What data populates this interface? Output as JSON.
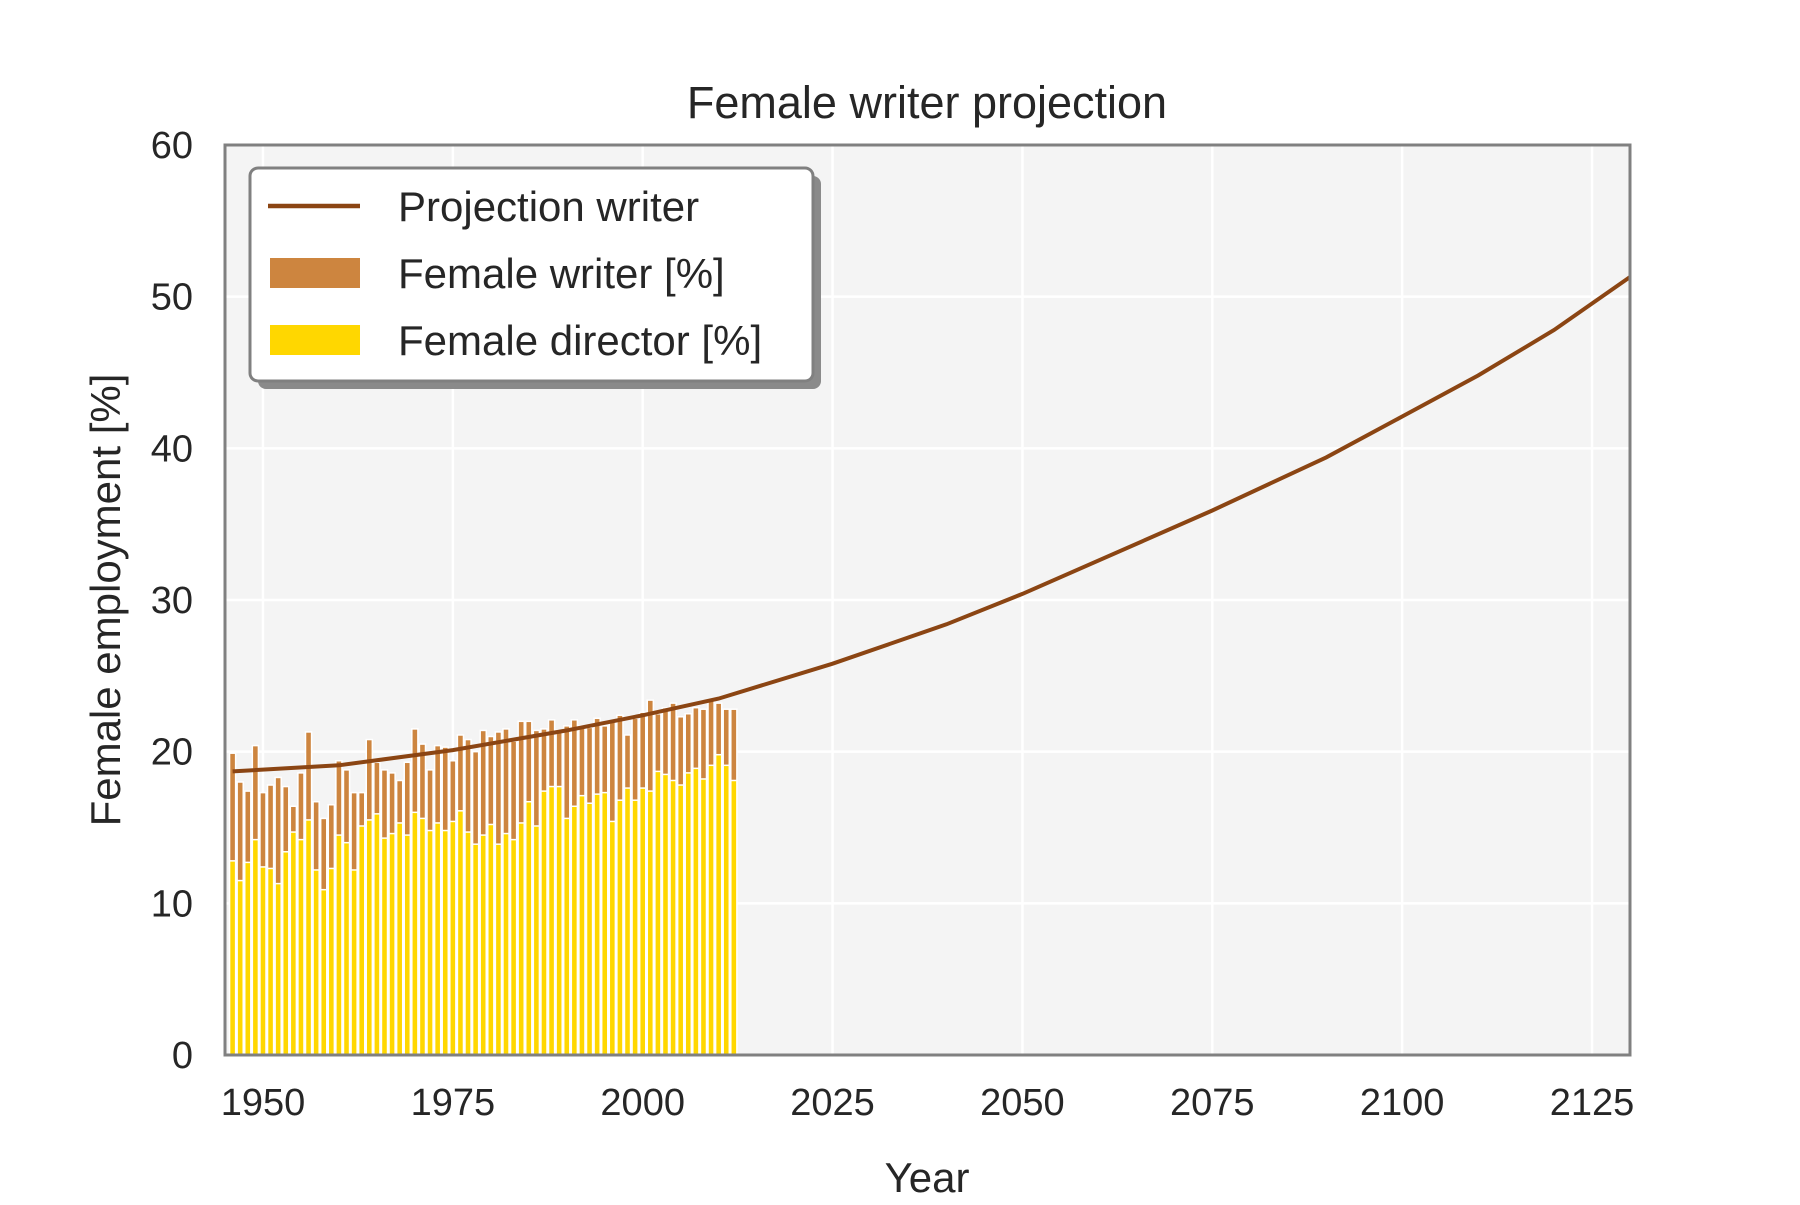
{
  "chart_data": {
    "type": "bar",
    "title": "Female writer projection",
    "xlabel": "Year",
    "ylabel": "Female employment [%]",
    "xlim": [
      1945,
      2130
    ],
    "ylim": [
      0,
      60
    ],
    "xticks": [
      1950,
      1975,
      2000,
      2025,
      2050,
      2075,
      2100,
      2125
    ],
    "yticks": [
      0,
      10,
      20,
      30,
      40,
      50,
      60
    ],
    "grid": true,
    "legend_position": "upper-left",
    "colors": {
      "projection": "#8B4513",
      "writer": "#CD853F",
      "director": "#FFD700",
      "background": "#F4F4F4",
      "frame": "#808080",
      "grid": "#FFFFFF"
    },
    "legend": [
      {
        "label": "Projection writer",
        "kind": "line",
        "color": "#8B4513"
      },
      {
        "label": "Female writer [%]",
        "kind": "patch",
        "color": "#CD853F"
      },
      {
        "label": "Female director [%]",
        "kind": "patch",
        "color": "#FFD700"
      }
    ],
    "projection": {
      "name": "Projection writer",
      "x": [
        1946,
        1960,
        1975,
        1990,
        2000,
        2010,
        2025,
        2040,
        2050,
        2060,
        2075,
        2090,
        2100,
        2110,
        2120,
        2130
      ],
      "y": [
        18.7,
        19.1,
        20.1,
        21.4,
        22.4,
        23.5,
        25.8,
        28.4,
        30.4,
        32.6,
        35.9,
        39.4,
        42.1,
        44.8,
        47.8,
        51.3
      ]
    },
    "years": [
      1946,
      1947,
      1948,
      1949,
      1950,
      1951,
      1952,
      1953,
      1954,
      1955,
      1956,
      1957,
      1958,
      1959,
      1960,
      1961,
      1962,
      1963,
      1964,
      1965,
      1966,
      1967,
      1968,
      1969,
      1970,
      1971,
      1972,
      1973,
      1974,
      1975,
      1976,
      1977,
      1978,
      1979,
      1980,
      1981,
      1982,
      1983,
      1984,
      1985,
      1986,
      1987,
      1988,
      1989,
      1990,
      1991,
      1992,
      1993,
      1994,
      1995,
      1996,
      1997,
      1998,
      1999,
      2000,
      2001,
      2002,
      2003,
      2004,
      2005,
      2006,
      2007,
      2008,
      2009,
      2010,
      2011,
      2012
    ],
    "series": [
      {
        "name": "Female writer [%]",
        "values": [
          19.9,
          18.0,
          17.4,
          20.4,
          17.3,
          17.8,
          18.3,
          17.7,
          16.4,
          18.6,
          21.3,
          16.7,
          15.6,
          16.5,
          19.4,
          18.8,
          17.3,
          17.3,
          20.8,
          19.3,
          18.8,
          18.6,
          18.1,
          19.3,
          21.5,
          20.5,
          18.8,
          20.4,
          20.3,
          19.4,
          21.1,
          20.8,
          20.0,
          21.4,
          21.0,
          21.3,
          21.5,
          20.7,
          22.0,
          22.0,
          21.4,
          21.5,
          22.1,
          21.4,
          21.7,
          22.1,
          21.7,
          21.6,
          22.2,
          21.7,
          22.0,
          22.4,
          21.1,
          22.2,
          22.6,
          23.4,
          22.5,
          22.9,
          23.2,
          22.3,
          22.5,
          22.9,
          22.8,
          23.4,
          23.2,
          22.8,
          22.8
        ]
      },
      {
        "name": "Female director [%]",
        "values": [
          12.8,
          11.5,
          12.7,
          14.2,
          12.4,
          12.3,
          11.3,
          13.4,
          14.7,
          14.2,
          15.5,
          12.2,
          10.9,
          12.3,
          14.5,
          14.0,
          12.2,
          15.1,
          15.5,
          15.9,
          14.3,
          14.6,
          15.3,
          14.5,
          16.0,
          15.6,
          14.8,
          15.3,
          14.8,
          15.4,
          16.1,
          14.7,
          13.9,
          14.5,
          15.2,
          13.9,
          14.6,
          14.2,
          15.3,
          16.7,
          15.1,
          17.4,
          17.7,
          17.7,
          15.6,
          16.4,
          17.1,
          16.6,
          17.2,
          17.3,
          15.4,
          16.8,
          17.6,
          16.8,
          17.6,
          17.4,
          18.7,
          18.5,
          18.1,
          17.8,
          18.6,
          18.9,
          18.2,
          19.1,
          19.8,
          19.1,
          18.1
        ]
      }
    ]
  }
}
